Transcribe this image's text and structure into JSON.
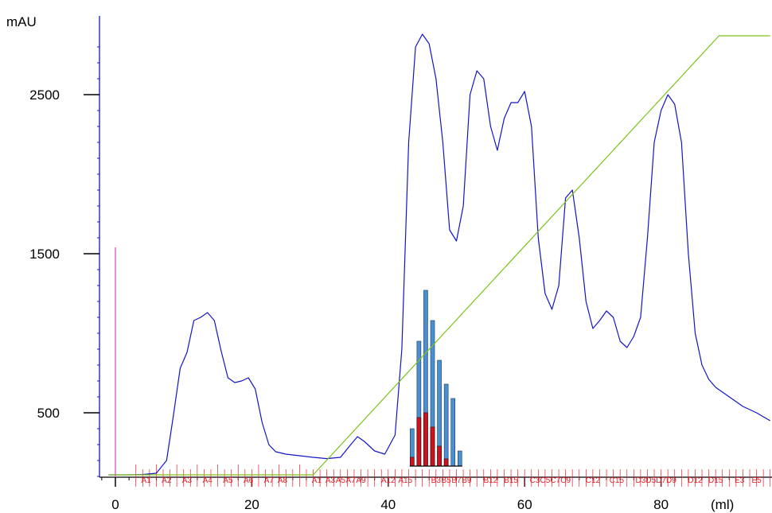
{
  "chart_data": {
    "type": "line",
    "y_unit_label": "mAU",
    "x_unit_label": "(ml)",
    "xlim": [
      -2.5,
      96
    ],
    "ylim": [
      0,
      2900
    ],
    "x_ticks": [
      0,
      20,
      40,
      60,
      80
    ],
    "y_ticks": [
      500,
      1500,
      2500
    ],
    "grid": false,
    "colors": {
      "uv": "#1414c8",
      "gradient": "#7cc21a",
      "injection": "#e040c0",
      "fraction": "#e8202a",
      "bar_blue": "#4a8fd0",
      "bar_red": "#cc1420"
    },
    "series": [
      {
        "x": [
          -1,
          2,
          4,
          6,
          7.5,
          8.5,
          9.5,
          10.5,
          11.5,
          12.5,
          13.5,
          14.5,
          15.5,
          16.5,
          17.5,
          18.5,
          19.5,
          20.5,
          21.5,
          22.5,
          23.5,
          25,
          27,
          29,
          31,
          33,
          34.5,
          35.5,
          36.5,
          38,
          39.5,
          41,
          42,
          43,
          44,
          45,
          46,
          47,
          48,
          49,
          50,
          51,
          52,
          53,
          54,
          55,
          56,
          57,
          58,
          59,
          60,
          61,
          62,
          63,
          64,
          65,
          66,
          67,
          68,
          69,
          70,
          71,
          72,
          73,
          74,
          75,
          76,
          77,
          78,
          79,
          80,
          81,
          82,
          83,
          84,
          85,
          86,
          87,
          88,
          90,
          92,
          94,
          96
        ],
        "values": [
          110,
          110,
          112,
          120,
          200,
          480,
          780,
          880,
          1080,
          1100,
          1130,
          1080,
          890,
          720,
          690,
          700,
          720,
          650,
          440,
          300,
          255,
          240,
          230,
          220,
          212,
          220,
          300,
          350,
          320,
          260,
          240,
          360,
          900,
          2200,
          2800,
          2880,
          2820,
          2600,
          2200,
          1650,
          1580,
          1800,
          2500,
          2650,
          2600,
          2300,
          2150,
          2350,
          2450,
          2450,
          2520,
          2300,
          1600,
          1250,
          1150,
          1300,
          1850,
          1900,
          1600,
          1200,
          1030,
          1080,
          1140,
          1100,
          950,
          910,
          980,
          1100,
          1600,
          2200,
          2400,
          2500,
          2440,
          2200,
          1500,
          1000,
          800,
          710,
          660,
          600,
          540,
          500,
          450
        ]
      },
      {
        "x": [
          -1,
          29,
          88.5,
          96
        ],
        "values": [
          110,
          110,
          2870,
          2870
        ]
      }
    ],
    "fractions": {
      "labels": [
        "A1",
        "A2",
        "A3",
        "A4",
        "A5",
        "A6",
        "A7",
        "A8",
        "A1",
        "A3",
        "A5",
        "A7",
        "A9",
        "A12",
        "A15",
        "B3",
        "B5",
        "B7",
        "B9",
        "B12",
        "B15",
        "C3",
        "C5",
        "C7",
        "C9",
        "C12",
        "C15",
        "D3",
        "D5",
        "D7",
        "D9",
        "D12",
        "D15",
        "E3",
        "E5"
      ],
      "label_x": [
        4.5,
        7.5,
        10.5,
        13.5,
        16.5,
        19.5,
        22.5,
        24.5,
        29.5,
        31.5,
        33,
        34.5,
        36,
        40,
        42.5,
        47,
        48.5,
        50,
        51.5,
        55,
        58,
        61.5,
        63,
        64.5,
        66,
        70,
        73.5,
        77,
        78.5,
        80,
        81.5,
        85,
        88,
        91.5,
        94
      ]
    },
    "bars": {
      "x": [
        43.5,
        44.5,
        45.5,
        46.5,
        47.5,
        48.5,
        49.5,
        50.5
      ],
      "blue": [
        400,
        950,
        1270,
        1080,
        830,
        680,
        590,
        260
      ],
      "red": [
        220,
        470,
        500,
        410,
        290,
        210,
        150,
        110
      ]
    }
  }
}
